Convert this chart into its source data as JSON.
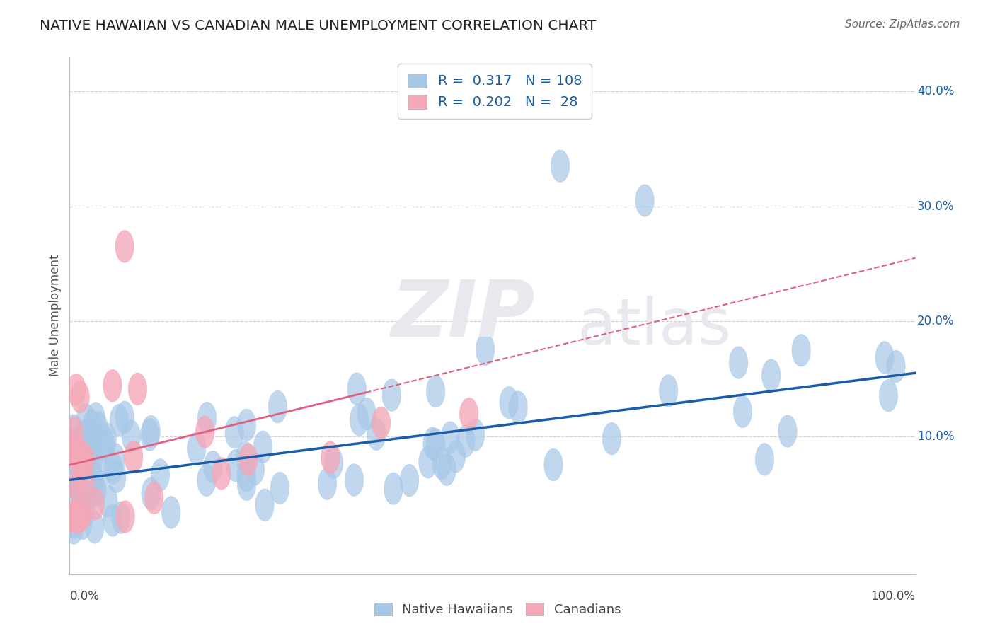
{
  "title": "NATIVE HAWAIIAN VS CANADIAN MALE UNEMPLOYMENT CORRELATION CHART",
  "source": "Source: ZipAtlas.com",
  "ylabel": "Male Unemployment",
  "xlim": [
    0,
    1.0
  ],
  "ylim": [
    -0.02,
    0.43
  ],
  "ytick_vals": [
    0.1,
    0.2,
    0.3,
    0.4
  ],
  "ytick_labels": [
    "10.0%",
    "20.0%",
    "30.0%",
    "40.0%"
  ],
  "nh_color": "#a8c8e8",
  "ca_color": "#f4a8b8",
  "nh_line_color": "#1a5ca8",
  "ca_line_color": "#e06080",
  "background_color": "#ffffff",
  "grid_color": "#d0d0d0",
  "nh_R": 0.317,
  "nh_N": 108,
  "ca_R": 0.202,
  "ca_N": 28,
  "nh_line_x0": 0.0,
  "nh_line_y0": 0.062,
  "nh_line_x1": 1.0,
  "nh_line_y1": 0.155,
  "ca_line_x0": 0.0,
  "ca_line_y0": 0.075,
  "ca_line_x1": 1.0,
  "ca_line_y1": 0.255
}
